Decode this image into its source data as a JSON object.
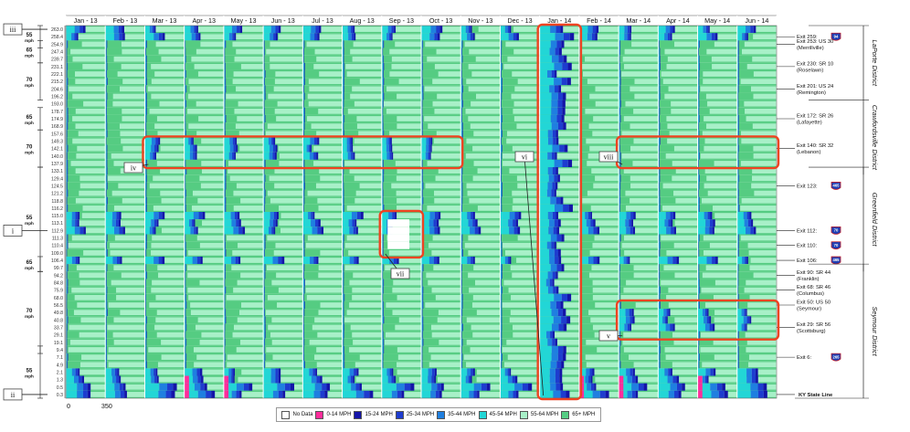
{
  "chart_data": {
    "type": "heatmap",
    "description_note": "",
    "months": [
      "Jan - 13",
      "Feb - 13",
      "Mar - 13",
      "Apr - 13",
      "May - 13",
      "Jun - 13",
      "Jul - 13",
      "Aug - 13",
      "Sep - 13",
      "Oct - 13",
      "Nov - 13",
      "Dec - 13",
      "Jan - 14",
      "Feb - 14",
      "Mar - 14",
      "Apr - 14",
      "May - 14",
      "Jun - 14"
    ],
    "mile_markers": [
      "263.0",
      "258.4",
      "254.9",
      "247.4",
      "239.7",
      "231.1",
      "222.1",
      "215.2",
      "204.6",
      "196.2",
      "193.0",
      "178.7",
      "174.9",
      "168.9",
      "157.6",
      "149.3",
      "142.1",
      "140.0",
      "137.9",
      "133.1",
      "129.4",
      "124.5",
      "121.2",
      "118.8",
      "116.2",
      "115.0",
      "113.1",
      "112.9",
      "111.3",
      "110.4",
      "109.0",
      "106.4",
      "99.7",
      "94.2",
      "84.8",
      "75.9",
      "68.0",
      "56.5",
      "49.8",
      "40.8",
      "33.7",
      "29.1",
      "19.1",
      "9.4",
      "7.1",
      "4.9",
      "2.1",
      "1.3",
      "0.5",
      "0.3"
    ],
    "speed_zones": [
      {
        "speed": "55",
        "unit": "mph",
        "from": "263.0",
        "to": "254.9"
      },
      {
        "speed": "65",
        "unit": "mph",
        "from": "254.9",
        "to": "239.7"
      },
      {
        "speed": "70",
        "unit": "mph",
        "from": "231.1",
        "to": "196.2"
      },
      {
        "speed": "65",
        "unit": "mph",
        "from": "178.7",
        "to": "168.9"
      },
      {
        "speed": "70",
        "unit": "mph",
        "from": "157.6",
        "to": "137.9"
      },
      {
        "speed": "55",
        "unit": "mph",
        "from": "133.1",
        "to": "99.7"
      },
      {
        "speed": "65",
        "unit": "mph",
        "from": "106.4",
        "to": "99.7"
      },
      {
        "speed": "70",
        "unit": "mph",
        "from": "94.2",
        "to": "9.4"
      },
      {
        "speed": "55",
        "unit": "mph",
        "from": "9.4",
        "to": "0.3"
      }
    ],
    "exits": [
      {
        "label": "Exit 259:",
        "marker": "258.4",
        "shield": "94",
        "shield_color": "#1f3fb4"
      },
      {
        "label": "Exit 253: US 30\n(Merrillville)",
        "marker": "254.9"
      },
      {
        "label": "Exit 230: SR 10\n(Roselawn)",
        "marker": "231.1"
      },
      {
        "label": "Exit 201: US 24\n(Remington)",
        "marker": "204.6"
      },
      {
        "label": "Exit 172: SR 26\n(Lafayette)",
        "marker": "174.9"
      },
      {
        "label": "Exit 140: SR 32\n(Lebanon)",
        "marker": "142.1"
      },
      {
        "label": "Exit 123:",
        "marker": "124.5",
        "shield": "465",
        "shield_color": "#1f3fb4"
      },
      {
        "label": "Exit 112:",
        "marker": "112.9",
        "shield": "70",
        "shield_color": "#1f3fb4"
      },
      {
        "label": "Exit 110:",
        "marker": "110.4",
        "shield": "70",
        "shield_color": "#1f3fb4"
      },
      {
        "label": "Exit 106:",
        "marker": "106.4",
        "shield": "465",
        "shield_color": "#1f3fb4"
      },
      {
        "label": "Exit 90: SR 44\n(Franklin)",
        "marker": "94.2"
      },
      {
        "label": "Exit 68: SR 46\n(Columbus)",
        "marker": "75.9"
      },
      {
        "label": "Exit 50: US 50\n(Seymour)",
        "marker": "56.5"
      },
      {
        "label": "Exit 29: SR 56\n(Scottsburg)",
        "marker": "33.7"
      },
      {
        "label": "Exit 6:",
        "marker": "7.1",
        "shield": "265",
        "shield_color": "#1f3fb4"
      },
      {
        "label": "KY State Line",
        "marker": "0.3",
        "bold": true
      }
    ],
    "districts": [
      {
        "name": "LaPorte District",
        "from": "263.0",
        "to": "196.2"
      },
      {
        "name": "Crawfordsville District",
        "from": "193.0",
        "to": "133.1"
      },
      {
        "name": "Greenfield District",
        "from": "133.1",
        "to": "99.7"
      },
      {
        "name": "Seymour District",
        "from": "99.7",
        "to": "0.3"
      }
    ],
    "scale_labels": [
      "0",
      "350"
    ],
    "legend": [
      {
        "label": "No Data",
        "color": "#ffffff"
      },
      {
        "label": "0-14 MPH",
        "color": "#ff2d9b"
      },
      {
        "label": "15-24 MPH",
        "color": "#1414a8"
      },
      {
        "label": "25-34 MPH",
        "color": "#1e3ccf"
      },
      {
        "label": "35-44 MPH",
        "color": "#1f7fe0"
      },
      {
        "label": "45-54 MPH",
        "color": "#22d6d6"
      },
      {
        "label": "55-64 MPH",
        "color": "#a8f0c8"
      },
      {
        "label": "65+ MPH",
        "color": "#55cc82"
      }
    ],
    "annotations": [
      {
        "id": "i",
        "label": "i",
        "target_marker": "112.9"
      },
      {
        "id": "ii",
        "label": "ii",
        "target_marker": "0.3"
      },
      {
        "id": "iii",
        "label": "iii",
        "target_marker": "263.0"
      },
      {
        "id": "iv",
        "label": "iv",
        "region": {
          "months": [
            "Mar - 13",
            "Oct - 13"
          ],
          "markers": [
            "149.3",
            "137.9"
          ]
        }
      },
      {
        "id": "v",
        "label": "v",
        "region": {
          "months": [
            "Mar - 14",
            "Jun - 14"
          ],
          "markers": [
            "56.5",
            "29.1"
          ]
        }
      },
      {
        "id": "vi",
        "label": "vi",
        "region": {
          "months": [
            "Jan - 14",
            "Jan - 14"
          ],
          "markers": [
            "263.0",
            "0.3"
          ]
        }
      },
      {
        "id": "vii",
        "label": "vii",
        "region": {
          "months": [
            "Sep - 13",
            "Sep - 13"
          ],
          "markers": [
            "115.0",
            "109.0"
          ]
        }
      },
      {
        "id": "viii",
        "label": "viii",
        "region": {
          "months": [
            "Mar - 14",
            "Jun - 14"
          ],
          "markers": [
            "149.3",
            "137.9"
          ]
        }
      }
    ],
    "highlight_color": "#ee4422"
  }
}
